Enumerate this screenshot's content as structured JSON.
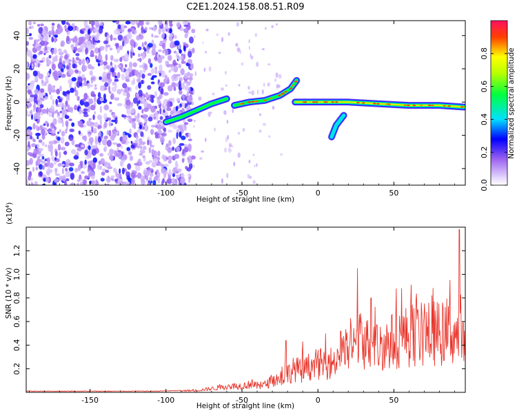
{
  "title": "C2E1.2024.158.08.51.R09",
  "chart_data": [
    {
      "type": "heatmap",
      "xlabel": "Height of straight line (km)",
      "ylabel": "Frequency (Hz)",
      "xlim": [
        -192,
        97
      ],
      "ylim": [
        -50,
        49
      ],
      "x_ticks": [
        -150,
        -100,
        -50,
        0,
        50
      ],
      "y_ticks": [
        -40,
        -20,
        0,
        20,
        40
      ],
      "x_tick_labels": [
        "-150",
        "-100",
        "-50",
        "0",
        "50"
      ],
      "y_tick_labels": [
        "-40",
        "-20",
        "0",
        "20",
        "40"
      ],
      "colorbar": {
        "label": "Normalized spectral amplitude",
        "range": [
          0,
          1
        ],
        "ticks": [
          0.0,
          0.2,
          0.4,
          0.6,
          0.8
        ],
        "tick_labels": [
          "0.0",
          "0.2",
          "0.4",
          "0.6",
          "0.8"
        ],
        "colormap": [
          "#ffffff",
          "#a060ff",
          "#0000ff",
          "#00ffff",
          "#00ff00",
          "#ffff00",
          "#ff0000",
          "#ff0060"
        ]
      },
      "grid": false,
      "features": [
        {
          "name": "broadband noise",
          "x_range": [
            -192,
            -82
          ],
          "y_range": [
            -50,
            49
          ],
          "amplitude": 0.15
        },
        {
          "name": "rising trace",
          "points": [
            [
              -100,
              -12
            ],
            [
              -90,
              -9
            ],
            [
              -80,
              -5
            ],
            [
              -70,
              -1
            ],
            [
              -60,
              2
            ]
          ],
          "amplitude": 0.55
        },
        {
          "name": "trace near zero",
          "points": [
            [
              -55,
              -2
            ],
            [
              -45,
              0
            ],
            [
              -35,
              1
            ],
            [
              -25,
              4
            ],
            [
              -18,
              8
            ],
            [
              -14,
              13
            ]
          ],
          "amplitude": 0.6
        },
        {
          "name": "steady line",
          "points": [
            [
              -15,
              0
            ],
            [
              0,
              0
            ],
            [
              20,
              0
            ],
            [
              40,
              -1
            ],
            [
              60,
              -2
            ],
            [
              80,
              -2
            ],
            [
              96,
              -3
            ]
          ],
          "amplitude": 0.8
        },
        {
          "name": "descending branch",
          "points": [
            [
              17,
              -8
            ],
            [
              12,
              -14
            ],
            [
              9,
              -21
            ]
          ],
          "amplitude": 0.45
        }
      ]
    },
    {
      "type": "line",
      "xlabel": "Height of straight line (km)",
      "ylabel": "SNR (10 * v/v)",
      "y_multiplier": "(x10",
      "y_multiplier_exponent": "4",
      "y_multiplier_close": ")",
      "xlim": [
        -192,
        97
      ],
      "ylim": [
        0,
        1.4
      ],
      "x_ticks": [
        -150,
        -100,
        -50,
        0,
        50
      ],
      "y_ticks": [
        0.2,
        0.4,
        0.6,
        0.8,
        1.0,
        1.2
      ],
      "x_tick_labels": [
        "-150",
        "-100",
        "-50",
        "0",
        "50"
      ],
      "y_tick_labels": [
        "0.2",
        "0.4",
        "0.6",
        "0.8",
        "1.0",
        "1.2"
      ],
      "grid": false,
      "line_color": "#e8342a",
      "series": [
        {
          "x": [
            -192,
            -170,
            -150,
            -130,
            -110,
            -90,
            -80,
            -70,
            -60,
            -50,
            -45,
            -40,
            -35,
            -30,
            -25,
            -20,
            -15,
            -10,
            -5,
            0,
            5,
            10,
            15,
            20,
            25,
            28,
            35,
            40,
            45,
            50,
            55,
            60,
            65,
            70,
            75,
            80,
            85,
            88,
            90,
            92,
            94,
            96
          ],
          "values": [
            0.01,
            0.01,
            0.01,
            0.01,
            0.01,
            0.015,
            0.02,
            0.04,
            0.06,
            0.07,
            0.08,
            0.07,
            0.08,
            0.12,
            0.15,
            0.2,
            0.25,
            0.22,
            0.28,
            0.3,
            0.3,
            0.32,
            0.4,
            0.45,
            0.5,
            0.55,
            0.5,
            0.48,
            0.52,
            0.55,
            0.58,
            0.6,
            0.62,
            0.6,
            0.63,
            0.62,
            0.65,
            0.65,
            0.6,
            0.62,
            0.55,
            0.5
          ],
          "peaks": [
            [
              -21,
              0.44
            ],
            [
              -10,
              0.43
            ],
            [
              15,
              0.52
            ],
            [
              26,
              1.05
            ],
            [
              35,
              0.8
            ],
            [
              55,
              0.88
            ],
            [
              75,
              0.82
            ],
            [
              87,
              0.95
            ],
            [
              93,
              1.38
            ]
          ]
        }
      ]
    }
  ]
}
